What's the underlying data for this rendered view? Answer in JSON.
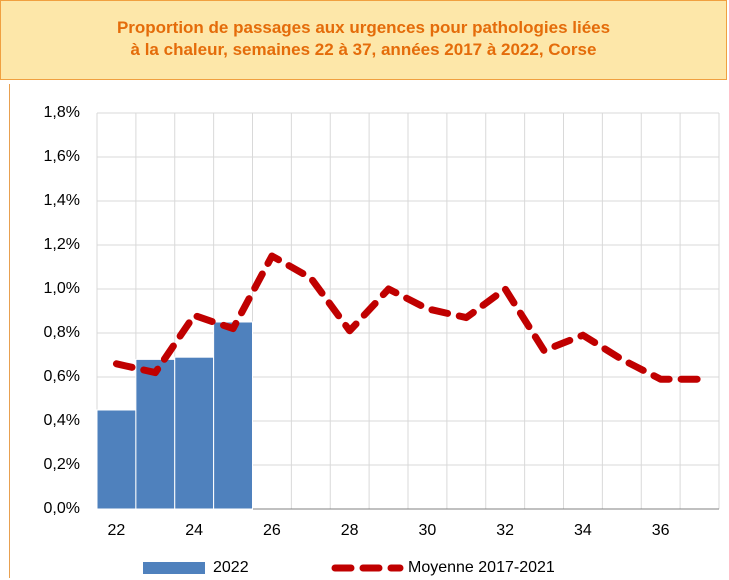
{
  "chart_data": {
    "type": "bar_line",
    "title": [
      "Proportion de passages aux urgences pour pathologies liées",
      "à la chaleur, semaines 22 à 37, années 2017 à 2022, Corse"
    ],
    "x": [
      22,
      23,
      24,
      25,
      26,
      27,
      28,
      29,
      30,
      31,
      32,
      33,
      34,
      35,
      36,
      37
    ],
    "xlim": [
      21.5,
      37.5
    ],
    "xticks": [
      22,
      24,
      26,
      28,
      30,
      32,
      34,
      36
    ],
    "ylim": [
      0,
      1.8
    ],
    "yticks": [
      {
        "value": 0,
        "label": "0,0%"
      },
      {
        "value": 0.2,
        "label": "0,2%"
      },
      {
        "value": 0.4,
        "label": "0,4%"
      },
      {
        "value": 0.6,
        "label": "0,6%"
      },
      {
        "value": 0.8,
        "label": "0,8%"
      },
      {
        "value": 1.0,
        "label": "1,0%"
      },
      {
        "value": 1.2,
        "label": "1,2%"
      },
      {
        "value": 1.4,
        "label": "1,4%"
      },
      {
        "value": 1.6,
        "label": "1,6%"
      },
      {
        "value": 1.8,
        "label": "1,8%"
      }
    ],
    "grid": true,
    "series": [
      {
        "name": "2022",
        "type": "bar",
        "color": "#4f81bd",
        "values": [
          0.45,
          0.68,
          0.69,
          0.85,
          null,
          null,
          null,
          null,
          null,
          null,
          null,
          null,
          null,
          null,
          null,
          null
        ]
      },
      {
        "name": "Moyenne 2017-2021",
        "type": "line",
        "color": "#c00000",
        "values": [
          0.66,
          0.62,
          0.88,
          0.82,
          1.15,
          1.05,
          0.81,
          1.0,
          0.91,
          0.87,
          1.0,
          0.72,
          0.79,
          0.68,
          0.59,
          0.59
        ]
      }
    ]
  }
}
